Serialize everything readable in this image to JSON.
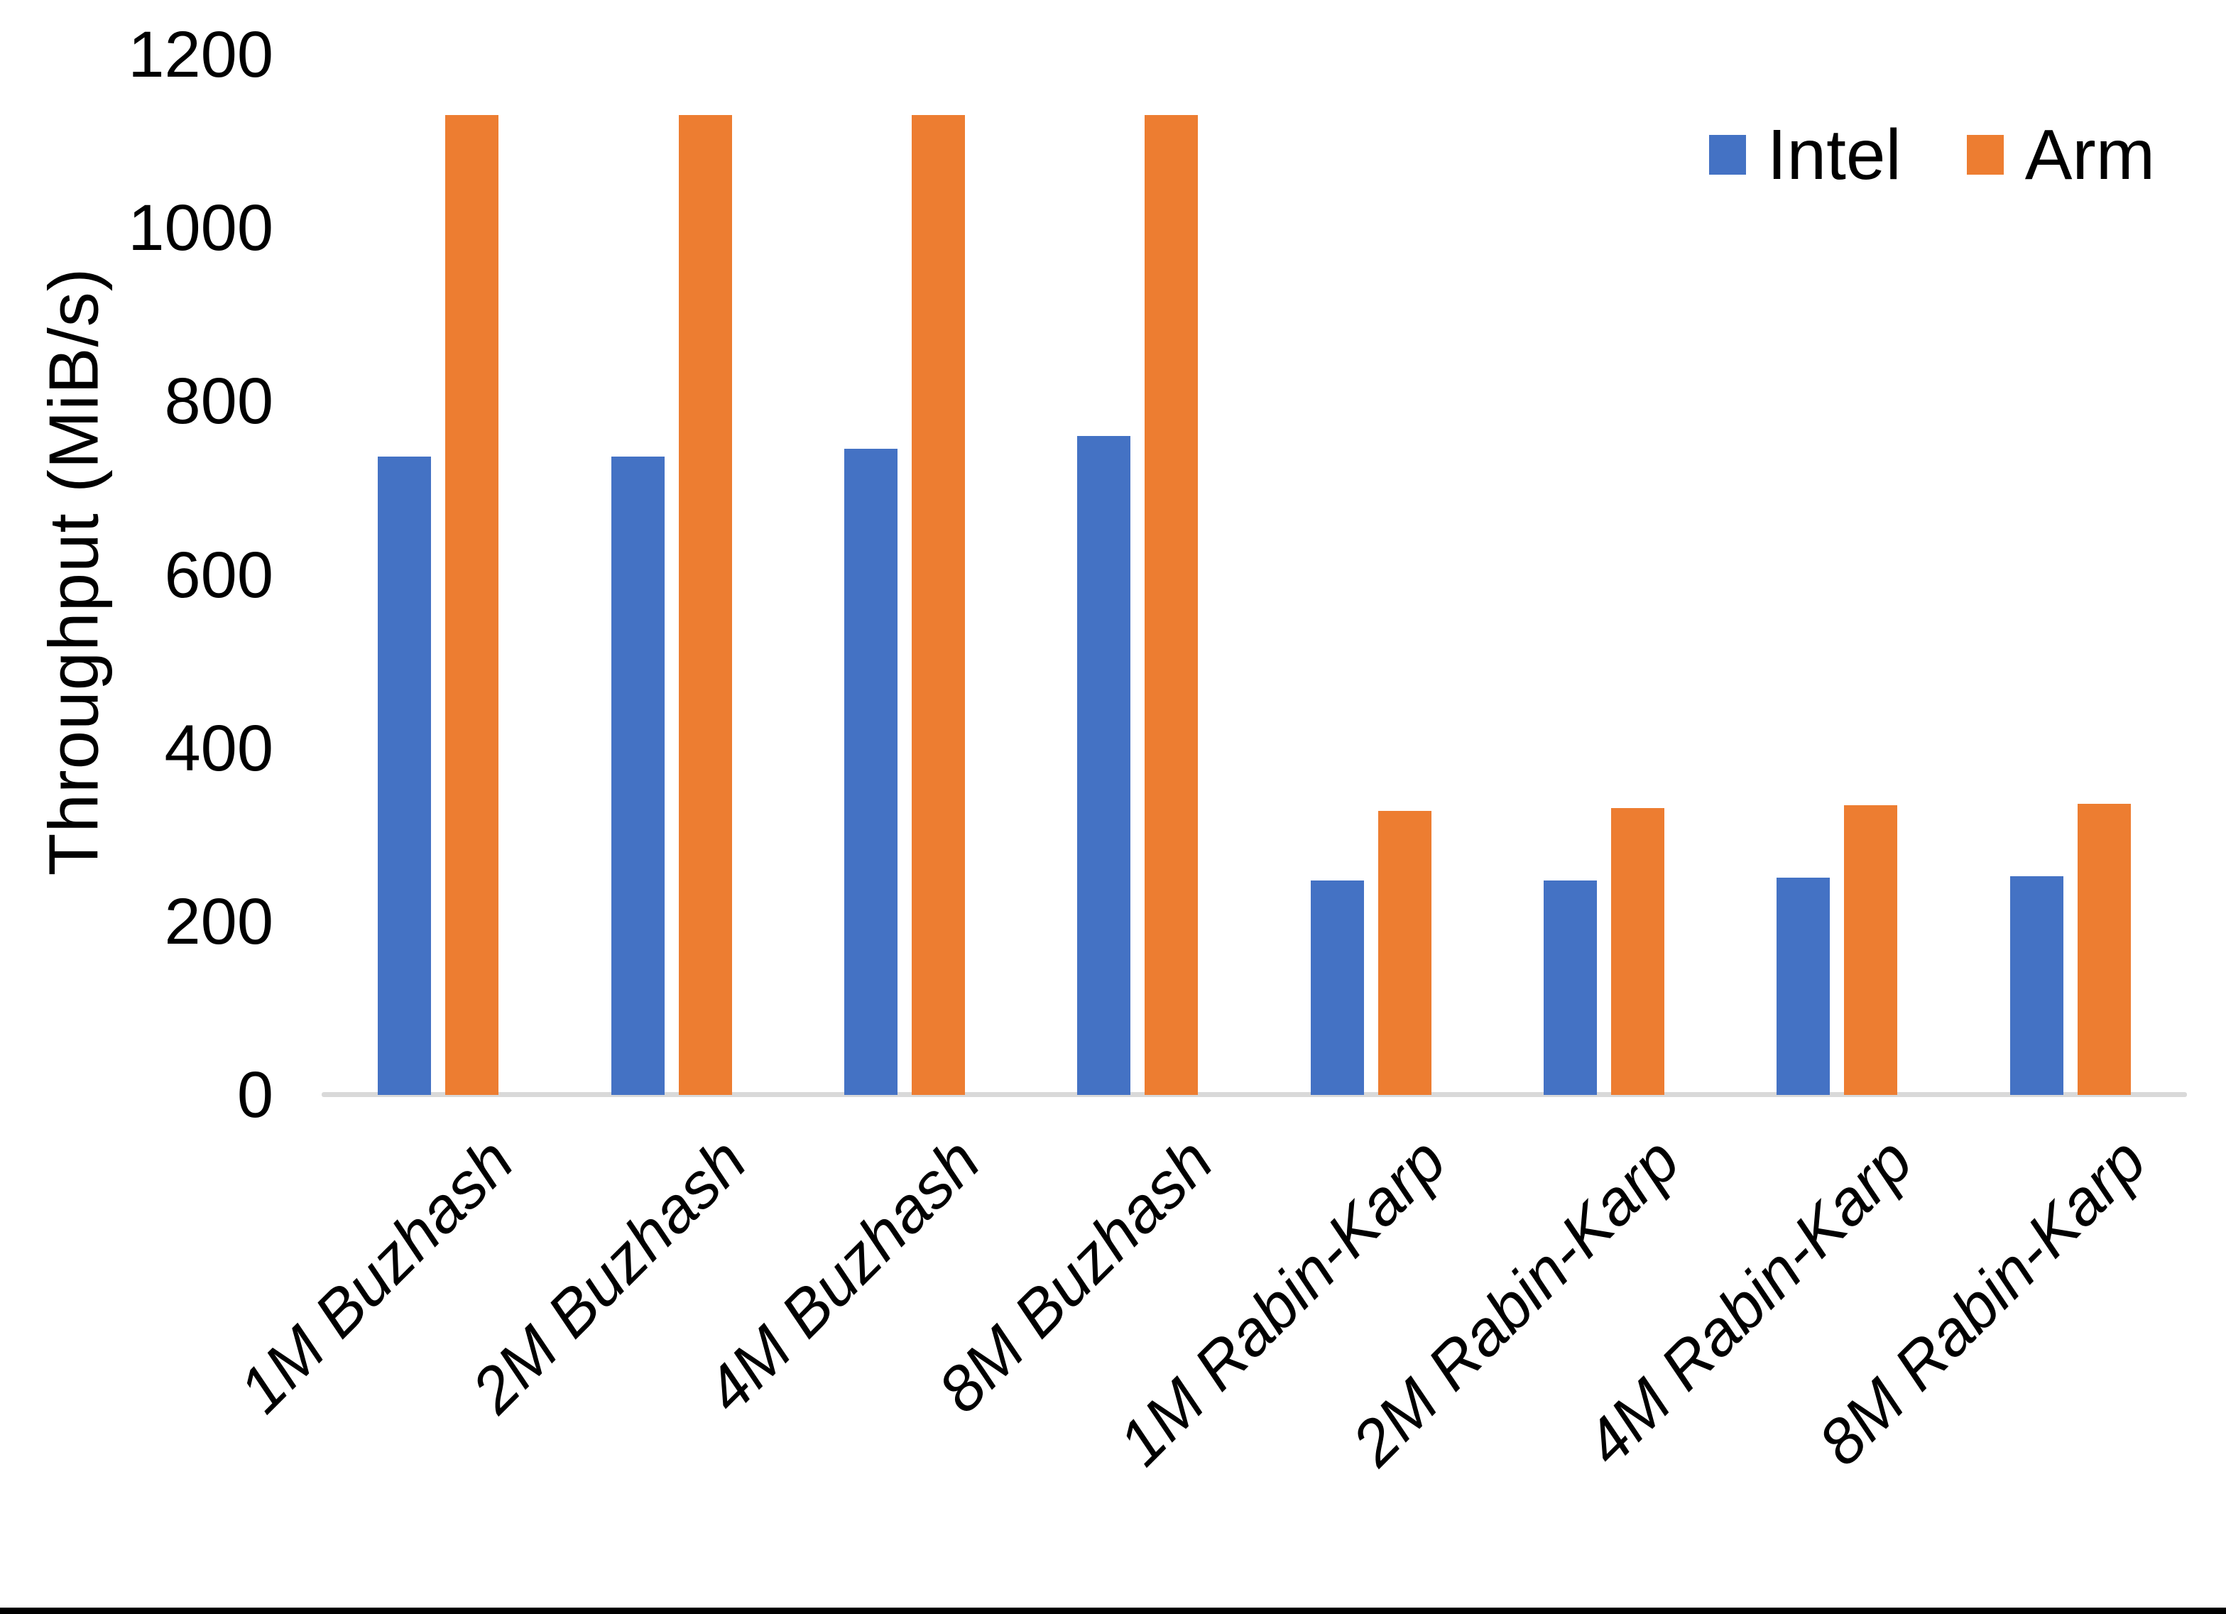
{
  "chart_data": {
    "type": "bar",
    "title": "",
    "xlabel": "",
    "ylabel": "Throughput (MiB/s)",
    "ylim": [
      0,
      1200
    ],
    "yticks": [
      0,
      200,
      400,
      600,
      800,
      1000,
      1200
    ],
    "grid": false,
    "legend_position": "top-right",
    "axis_line_color": "#D9D9D9",
    "categories": [
      "1M Buzhash",
      "2M Buzhash",
      "4M Buzhash",
      "8M Buzhash",
      "1M Rabin-Karp",
      "2M Rabin-Karp",
      "4M Rabin-Karp",
      "8M Rabin-Karp"
    ],
    "series": [
      {
        "name": "Intel",
        "color": "#4472C4",
        "values": [
          736,
          736,
          745,
          760,
          247,
          247,
          251,
          252
        ]
      },
      {
        "name": "Arm",
        "color": "#ED7D31",
        "values": [
          1130,
          1130,
          1130,
          1130,
          328,
          331,
          334,
          336
        ]
      }
    ]
  }
}
